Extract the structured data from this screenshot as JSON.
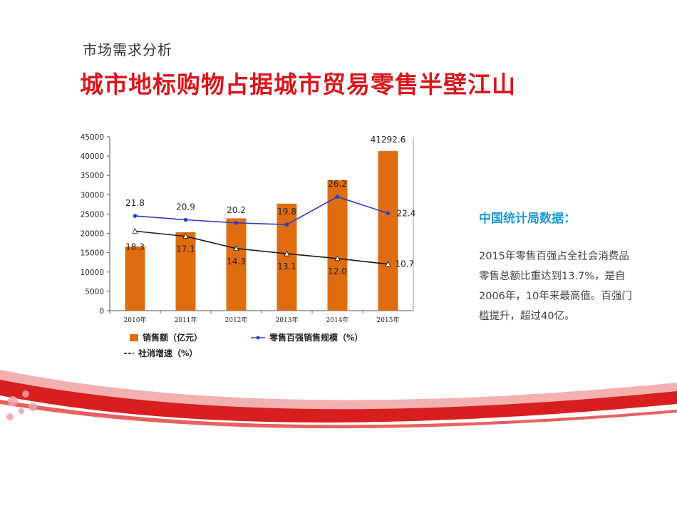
{
  "slide": {
    "subtitle": "市场需求分析",
    "headline": "城市地标购物占据城市贸易零售半壁江山"
  },
  "side_panel": {
    "heading": "中国统计局数据：",
    "body_lines": [
      "2015年零售百强占全社会消费品",
      "零售总额比重达到13.7%，是自",
      "2006年，10年来最高值。百强门",
      "槛提升，超过40亿。"
    ]
  },
  "colors": {
    "headline": "#d9161c",
    "bar": "#e06c10",
    "line_blue": "#2a3fc9",
    "line_black": "#1a1a1a",
    "side_heading": "#1a9bd7",
    "ribbon": "#d81e1e"
  },
  "chart_data": {
    "type": "bar",
    "categories": [
      "2010年",
      "2011年",
      "2012年",
      "2013年",
      "2014年",
      "2015年"
    ],
    "y_ticks": [
      "0",
      "5000",
      "10000",
      "15000",
      "20000",
      "25000",
      "30000",
      "35000",
      "40000",
      "45000"
    ],
    "ylim": [
      0,
      45000
    ],
    "grid": false,
    "legend_position": "bottom",
    "series": [
      {
        "name": "销售额（亿元）",
        "type": "bar",
        "values": [
          16600,
          20300,
          23900,
          27700,
          33800,
          41292.6
        ],
        "labels": [
          "",
          "",
          "",
          "",
          "",
          "41292.6"
        ]
      },
      {
        "name": "零售百强销售规模（%）",
        "type": "line",
        "values": [
          21.8,
          20.9,
          20.2,
          19.8,
          26.2,
          22.4
        ],
        "labels": [
          "21.8",
          "20.9",
          "20.2",
          "19.8",
          "26.2",
          "22.4"
        ]
      },
      {
        "name": "社消增速（%）",
        "type": "line",
        "values": [
          18.3,
          17.1,
          14.3,
          13.1,
          12.0,
          10.7
        ],
        "labels": [
          "18.3",
          "17.1",
          "14.3",
          "13.1",
          "12.0",
          "10.7"
        ]
      }
    ]
  }
}
